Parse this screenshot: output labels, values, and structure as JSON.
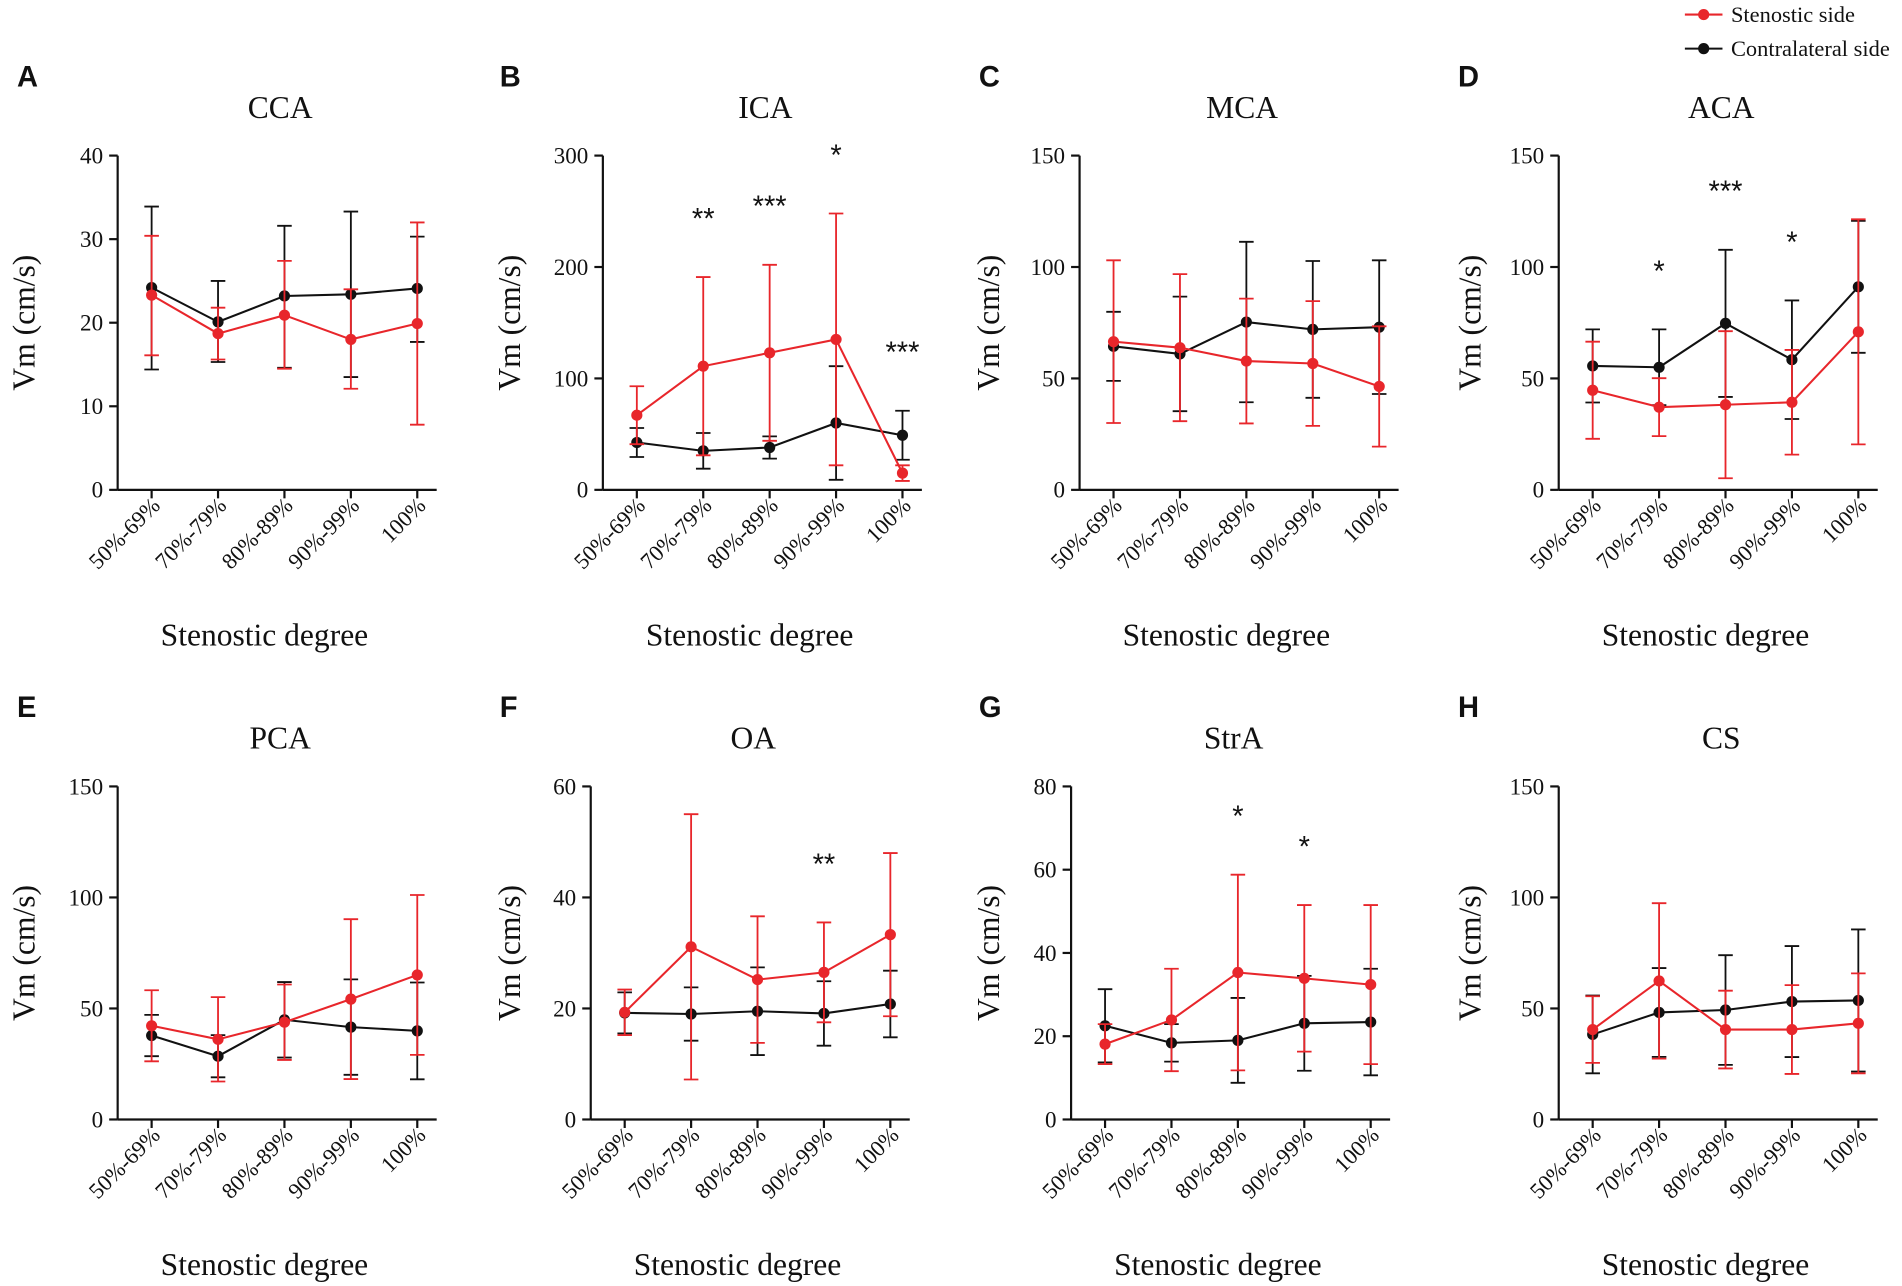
{
  "legend": [
    {
      "label": "Stenostic side",
      "color": "#e8262b"
    },
    {
      "label": "Contralateral side",
      "color": "#111111"
    }
  ],
  "chart_data": [
    {
      "panel": "A",
      "type": "line",
      "title": "CCA",
      "xlabel": "Stenostic degree",
      "ylabel": "Vm (cm/s)",
      "categories": [
        "50%-69%",
        "70%-79%",
        "80%-89%",
        "90%-99%",
        "100%"
      ],
      "ylim": [
        0,
        40
      ],
      "yticks": [
        0,
        10,
        20,
        30,
        40
      ],
      "series": [
        {
          "legend_index": 0,
          "mean": [
            23.3,
            18.7,
            20.9,
            18.0,
            19.9
          ],
          "upper": [
            30.4,
            21.8,
            27.4,
            24.0,
            32.0
          ],
          "lower": [
            16.1,
            15.6,
            14.5,
            12.1,
            7.8
          ]
        },
        {
          "legend_index": 1,
          "mean": [
            24.2,
            20.1,
            23.2,
            23.4,
            24.1
          ],
          "upper": [
            33.9,
            25.0,
            31.6,
            33.3,
            30.3
          ],
          "lower": [
            14.4,
            15.3,
            14.6,
            13.5,
            17.7
          ]
        }
      ],
      "annotations": []
    },
    {
      "panel": "B",
      "type": "line",
      "title": "ICA",
      "xlabel": "Stenostic degree",
      "ylabel": "Vm (cm/s)",
      "categories": [
        "50%-69%",
        "70%-79%",
        "80%-89%",
        "90%-99%",
        "100%"
      ],
      "ylim": [
        0,
        300
      ],
      "yticks": [
        0,
        100,
        200,
        300
      ],
      "series": [
        {
          "legend_index": 0,
          "mean": [
            67,
            111,
            123,
            135,
            15
          ],
          "upper": [
            93,
            191,
            202,
            248,
            22
          ],
          "lower": [
            41,
            31,
            44,
            22,
            8
          ]
        },
        {
          "legend_index": 1,
          "mean": [
            42.5,
            35,
            38,
            60,
            49
          ],
          "upper": [
            55.5,
            51,
            48,
            111,
            71
          ],
          "lower": [
            29.5,
            19,
            28,
            9,
            27
          ]
        }
      ],
      "annotations": [
        {
          "category_index": 1,
          "label": "**"
        },
        {
          "category_index": 2,
          "label": "***"
        },
        {
          "category_index": 3,
          "label": "*"
        },
        {
          "category_index": 4,
          "label": "***"
        }
      ]
    },
    {
      "panel": "C",
      "type": "line",
      "title": "MCA",
      "xlabel": "Stenostic degree",
      "ylabel": "Vm (cm/s)",
      "categories": [
        "50%-69%",
        "70%-79%",
        "80%-89%",
        "90%-99%",
        "100%"
      ],
      "ylim": [
        0,
        150
      ],
      "yticks": [
        0,
        50,
        100,
        150
      ],
      "series": [
        {
          "legend_index": 0,
          "mean": [
            66.5,
            63.8,
            57.8,
            56.7,
            46.4
          ],
          "upper": [
            103.0,
            96.8,
            85.8,
            84.7,
            73.4
          ],
          "lower": [
            30.0,
            30.8,
            29.8,
            28.7,
            19.4
          ]
        },
        {
          "legend_index": 1,
          "mean": [
            64.4,
            61.0,
            75.3,
            72.0,
            73.0
          ],
          "upper": [
            79.9,
            86.7,
            111.3,
            102.7,
            103.0
          ],
          "lower": [
            48.9,
            35.3,
            39.3,
            41.3,
            43.0
          ]
        }
      ],
      "annotations": []
    },
    {
      "panel": "D",
      "type": "line",
      "title": "ACA",
      "xlabel": "Stenostic degree",
      "ylabel": "Vm (cm/s)",
      "categories": [
        "50%-69%",
        "70%-79%",
        "80%-89%",
        "90%-99%",
        "100%"
      ],
      "ylim": [
        0,
        150
      ],
      "yticks": [
        0,
        50,
        100,
        150
      ],
      "series": [
        {
          "legend_index": 0,
          "mean": [
            44.7,
            37.1,
            38.2,
            39.3,
            70.9
          ],
          "upper": [
            66.5,
            50.1,
            71.2,
            62.8,
            121.4
          ],
          "lower": [
            22.9,
            24.1,
            5.2,
            15.8,
            20.4
          ]
        },
        {
          "legend_index": 1,
          "mean": [
            55.6,
            55.0,
            74.7,
            58.4,
            91.1
          ],
          "upper": [
            72.0,
            72.0,
            107.7,
            85.0,
            120.7
          ],
          "lower": [
            39.2,
            38.0,
            41.7,
            31.8,
            61.5
          ]
        }
      ],
      "annotations": [
        {
          "category_index": 1,
          "label": "*"
        },
        {
          "category_index": 2,
          "label": "***"
        },
        {
          "category_index": 3,
          "label": "*"
        }
      ]
    },
    {
      "panel": "E",
      "type": "line",
      "title": "PCA",
      "xlabel": "Stenostic degree",
      "ylabel": "Vm (cm/s)",
      "categories": [
        "50%-69%",
        "70%-79%",
        "80%-89%",
        "90%-99%",
        "100%"
      ],
      "ylim": [
        0,
        150
      ],
      "yticks": [
        0,
        50,
        100,
        150
      ],
      "series": [
        {
          "legend_index": 0,
          "mean": [
            42.2,
            36.1,
            43.8,
            54.2,
            65.1
          ],
          "upper": [
            58.2,
            55.1,
            60.8,
            90.2,
            101.1
          ],
          "lower": [
            26.2,
            17.1,
            26.8,
            18.2,
            29.1
          ]
        },
        {
          "legend_index": 1,
          "mean": [
            37.8,
            28.5,
            44.9,
            41.6,
            39.9
          ],
          "upper": [
            47.1,
            38.0,
            61.9,
            63.1,
            61.7
          ],
          "lower": [
            28.5,
            19.0,
            27.9,
            20.1,
            18.1
          ]
        }
      ],
      "annotations": []
    },
    {
      "panel": "F",
      "type": "line",
      "title": "OA",
      "xlabel": "Stenostic degree",
      "ylabel": "Vm (cm/s)",
      "categories": [
        "50%-69%",
        "70%-79%",
        "80%-89%",
        "90%-99%",
        "100%"
      ],
      "ylim": [
        0,
        60
      ],
      "yticks": [
        0,
        20,
        40,
        60
      ],
      "series": [
        {
          "legend_index": 0,
          "mean": [
            19.3,
            31.1,
            25.2,
            26.5,
            33.3
          ],
          "upper": [
            23.4,
            55.0,
            36.6,
            35.5,
            48.0
          ],
          "lower": [
            15.2,
            7.2,
            13.8,
            17.5,
            18.6
          ]
        },
        {
          "legend_index": 1,
          "mean": [
            19.2,
            19.0,
            19.5,
            19.1,
            20.8
          ],
          "upper": [
            22.9,
            23.8,
            27.4,
            24.9,
            26.8
          ],
          "lower": [
            15.5,
            14.2,
            11.6,
            13.3,
            14.8
          ]
        }
      ],
      "annotations": [
        {
          "category_index": 3,
          "label": "**"
        }
      ]
    },
    {
      "panel": "G",
      "type": "line",
      "title": "StrA",
      "xlabel": "Stenostic degree",
      "ylabel": "Vm (cm/s)",
      "categories": [
        "50%-69%",
        "70%-79%",
        "80%-89%",
        "90%-99%",
        "100%"
      ],
      "ylim": [
        0,
        80
      ],
      "yticks": [
        0,
        20,
        40,
        60,
        80
      ],
      "series": [
        {
          "legend_index": 0,
          "mean": [
            18.1,
            23.9,
            35.3,
            33.9,
            32.4
          ],
          "upper": [
            22.9,
            36.2,
            58.8,
            51.5,
            51.5
          ],
          "lower": [
            13.3,
            11.6,
            11.8,
            16.3,
            13.3
          ]
        },
        {
          "legend_index": 1,
          "mean": [
            22.5,
            18.4,
            19.0,
            23.1,
            23.4
          ],
          "upper": [
            31.3,
            22.9,
            29.2,
            34.5,
            36.2
          ],
          "lower": [
            13.7,
            13.9,
            8.8,
            11.7,
            10.6
          ]
        }
      ],
      "annotations": [
        {
          "category_index": 2,
          "label": "*"
        },
        {
          "category_index": 3,
          "label": "*"
        }
      ]
    },
    {
      "panel": "H",
      "type": "line",
      "title": "CS",
      "xlabel": "Stenostic degree",
      "ylabel": "Vm (cm/s)",
      "categories": [
        "50%-69%",
        "70%-79%",
        "80%-89%",
        "90%-99%",
        "100%"
      ],
      "ylim": [
        0,
        150
      ],
      "yticks": [
        0,
        50,
        100,
        150
      ],
      "series": [
        {
          "legend_index": 0,
          "mean": [
            40.5,
            62.4,
            40.5,
            40.5,
            43.3
          ],
          "upper": [
            55.5,
            97.4,
            58.0,
            60.5,
            65.8
          ],
          "lower": [
            25.5,
            27.4,
            23.0,
            20.5,
            20.8
          ]
        },
        {
          "legend_index": 1,
          "mean": [
            38.3,
            48.2,
            49.3,
            53.1,
            53.6
          ],
          "upper": [
            55.8,
            68.2,
            74.0,
            78.1,
            85.6
          ],
          "lower": [
            20.8,
            28.2,
            24.6,
            28.1,
            21.6
          ]
        }
      ],
      "annotations": []
    }
  ]
}
